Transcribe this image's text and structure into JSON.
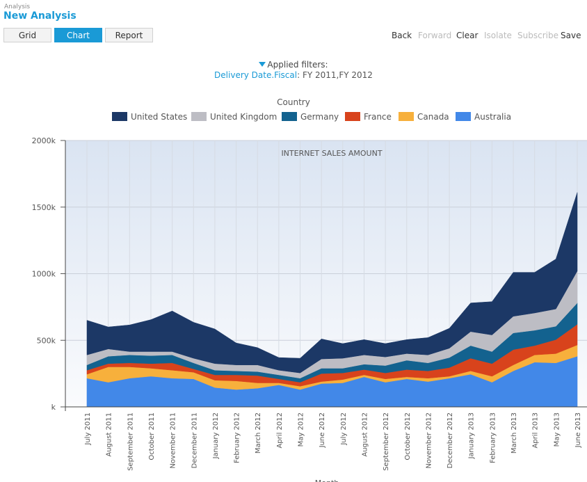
{
  "header": {
    "breadcrumb": "Analysis",
    "title": "New Analysis"
  },
  "views": [
    {
      "label": "Grid",
      "active": false
    },
    {
      "label": "Chart",
      "active": true
    },
    {
      "label": "Report",
      "active": false
    }
  ],
  "toolbar": {
    "back": "Back",
    "forward": "Forward",
    "clear": "Clear",
    "isolate": "Isolate",
    "subscribe": "Subscribe",
    "save": "Save"
  },
  "filters": {
    "title": "Applied filters:",
    "field": "Delivery Date.Fiscal",
    "values": "FY 2011,FY 2012"
  },
  "legend": {
    "title": "Country"
  },
  "colors": {
    "accent": "#1a9ad6",
    "United States": "#1c3866",
    "United Kingdom": "#bdbdc4",
    "Germany": "#13628f",
    "France": "#d8431c",
    "Canada": "#f7b03c",
    "Australia": "#4288e8"
  },
  "chart_data": {
    "type": "area",
    "stacked": true,
    "title": "INTERNET SALES AMOUNT",
    "xlabel": "Month",
    "ylabel": "",
    "ylim": [
      0,
      2000000
    ],
    "yticks": [
      "k",
      "500k",
      "1000k",
      "1500k",
      "2000k"
    ],
    "grid": true,
    "legend_position": "top",
    "categories": [
      "July 2011",
      "August 2011",
      "September 2011",
      "October 2011",
      "November 2011",
      "December 2011",
      "January 2012",
      "February 2012",
      "March 2012",
      "April 2012",
      "May 2012",
      "June 2012",
      "July 2012",
      "August 2012",
      "September 2012",
      "October 2012",
      "November 2012",
      "December 2012",
      "January 2013",
      "February 2013",
      "March 2013",
      "April 2013",
      "May 2013",
      "June 2013"
    ],
    "series": [
      {
        "name": "Australia",
        "values": [
          215000,
          185000,
          215000,
          230000,
          215000,
          210000,
          145000,
          130000,
          140000,
          165000,
          130000,
          175000,
          180000,
          225000,
          185000,
          210000,
          190000,
          215000,
          245000,
          185000,
          270000,
          335000,
          330000,
          380000
        ]
      },
      {
        "name": "Canada",
        "values": [
          30000,
          115000,
          85000,
          60000,
          60000,
          50000,
          55000,
          65000,
          40000,
          15000,
          25000,
          15000,
          25000,
          15000,
          25000,
          15000,
          25000,
          15000,
          25000,
          45000,
          45000,
          55000,
          70000,
          85000
        ]
      },
      {
        "name": "France",
        "values": [
          30000,
          25000,
          30000,
          35000,
          55000,
          25000,
          40000,
          45000,
          55000,
          30000,
          30000,
          60000,
          50000,
          40000,
          45000,
          55000,
          55000,
          65000,
          95000,
          95000,
          115000,
          70000,
          105000,
          155000
        ]
      },
      {
        "name": "Germany",
        "values": [
          40000,
          55000,
          60000,
          60000,
          60000,
          45000,
          35000,
          30000,
          30000,
          30000,
          30000,
          40000,
          35000,
          40000,
          55000,
          70000,
          60000,
          75000,
          95000,
          90000,
          125000,
          115000,
          100000,
          160000
        ]
      },
      {
        "name": "United Kingdom",
        "values": [
          75000,
          55000,
          25000,
          30000,
          25000,
          35000,
          50000,
          45000,
          50000,
          35000,
          40000,
          70000,
          75000,
          70000,
          65000,
          50000,
          60000,
          70000,
          105000,
          125000,
          125000,
          130000,
          130000,
          240000
        ]
      },
      {
        "name": "United States",
        "values": [
          260000,
          165000,
          200000,
          240000,
          305000,
          270000,
          260000,
          165000,
          130000,
          95000,
          110000,
          150000,
          110000,
          115000,
          100000,
          105000,
          130000,
          150000,
          215000,
          250000,
          330000,
          305000,
          375000,
          590000
        ]
      }
    ]
  }
}
